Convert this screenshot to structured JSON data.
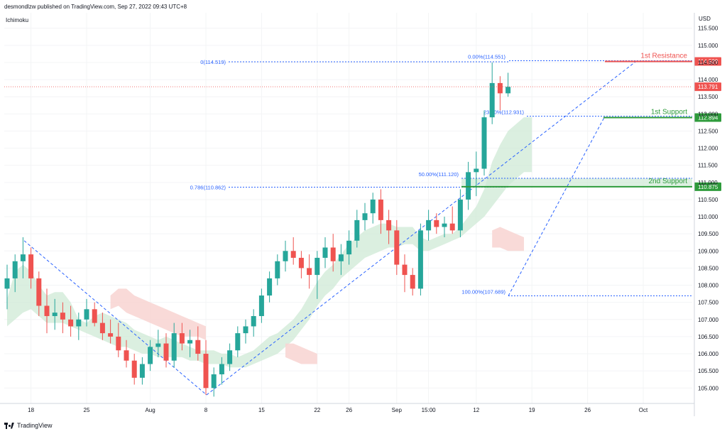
{
  "header": {
    "text": "desmondlzw published on TradingView.com, Sep 27, 2022 09:43 UTC+8"
  },
  "indicator": {
    "name": "Ichimoku"
  },
  "footer": {
    "brand": "TradingView"
  },
  "colors": {
    "bull": "#26a69a",
    "bear": "#ef5350",
    "resistance": "#ef5350",
    "support": "#2e9b3b",
    "fib": "#2962ff",
    "cloud_bull": "#cfe9d5",
    "cloud_bear": "#f8d3d1",
    "last_price": "#ef5350"
  },
  "chart_data": {
    "type": "candlestick",
    "currency_label": "USD",
    "ylim": [
      104.55,
      115.95
    ],
    "y_ticks": [
      "105.000",
      "105.500",
      "106.000",
      "106.500",
      "107.000",
      "107.500",
      "108.000",
      "108.500",
      "109.000",
      "109.500",
      "110.000",
      "110.500",
      "111.000",
      "111.500",
      "112.000",
      "112.500",
      "113.000",
      "113.500",
      "114.000",
      "114.500",
      "115.000",
      "115.500"
    ],
    "x_ticks": [
      {
        "label": "18",
        "i": 3
      },
      {
        "label": "25",
        "i": 10
      },
      {
        "label": "Aug",
        "i": 18
      },
      {
        "label": "8",
        "i": 25
      },
      {
        "label": "15",
        "i": 32
      },
      {
        "label": "22",
        "i": 39
      },
      {
        "label": "26",
        "i": 43
      },
      {
        "label": "Sep",
        "i": 49
      },
      {
        "label": "15:00",
        "i": 53
      },
      {
        "label": "12",
        "i": 59
      },
      {
        "label": "19",
        "i": 66
      },
      {
        "label": "26",
        "i": 73
      },
      {
        "label": "Oct",
        "i": 80
      }
    ],
    "candles": [
      [
        107.9,
        108.6,
        107.3,
        108.2
      ],
      [
        108.2,
        108.9,
        107.8,
        108.7
      ],
      [
        108.7,
        109.4,
        108.2,
        108.9
      ],
      [
        108.9,
        109.1,
        107.9,
        108.2
      ],
      [
        108.2,
        108.4,
        107.1,
        107.4
      ],
      [
        107.4,
        107.9,
        106.6,
        107.1
      ],
      [
        107.1,
        107.6,
        106.7,
        107.2
      ],
      [
        107.2,
        107.5,
        106.6,
        107.0
      ],
      [
        107.0,
        107.4,
        106.5,
        106.8
      ],
      [
        106.8,
        107.2,
        106.4,
        107.0
      ],
      [
        107.0,
        107.6,
        106.8,
        107.3
      ],
      [
        107.3,
        107.5,
        106.8,
        106.9
      ],
      [
        106.9,
        107.2,
        106.4,
        106.6
      ],
      [
        106.6,
        107.0,
        106.3,
        106.5
      ],
      [
        106.5,
        106.9,
        105.9,
        106.1
      ],
      [
        106.1,
        106.4,
        105.6,
        105.8
      ],
      [
        105.8,
        106.0,
        105.1,
        105.3
      ],
      [
        105.3,
        105.9,
        105.1,
        105.7
      ],
      [
        105.7,
        106.4,
        105.5,
        106.2
      ],
      [
        106.2,
        106.7,
        105.9,
        106.3
      ],
      [
        106.3,
        106.6,
        105.6,
        105.8
      ],
      [
        105.8,
        106.9,
        105.6,
        106.6
      ],
      [
        106.6,
        106.9,
        106.1,
        106.3
      ],
      [
        106.3,
        106.7,
        105.9,
        106.4
      ],
      [
        106.4,
        106.8,
        105.8,
        106.0
      ],
      [
        106.0,
        106.4,
        104.8,
        105.0
      ],
      [
        105.0,
        105.6,
        104.75,
        105.4
      ],
      [
        105.4,
        105.9,
        105.1,
        105.7
      ],
      [
        105.7,
        106.3,
        105.5,
        106.1
      ],
      [
        106.1,
        106.8,
        105.9,
        106.6
      ],
      [
        106.6,
        107.0,
        106.3,
        106.8
      ],
      [
        106.8,
        107.3,
        106.5,
        107.1
      ],
      [
        107.1,
        107.9,
        106.9,
        107.7
      ],
      [
        107.7,
        108.4,
        107.5,
        108.2
      ],
      [
        108.2,
        108.9,
        108.0,
        108.7
      ],
      [
        108.7,
        109.3,
        108.4,
        109.0
      ],
      [
        109.0,
        109.4,
        108.6,
        108.8
      ],
      [
        108.8,
        109.0,
        108.2,
        108.5
      ],
      [
        108.5,
        108.9,
        107.9,
        108.3
      ],
      [
        108.3,
        109.0,
        107.6,
        108.8
      ],
      [
        108.8,
        109.4,
        108.5,
        109.1
      ],
      [
        109.1,
        109.5,
        108.4,
        108.7
      ],
      [
        108.7,
        109.2,
        108.3,
        108.9
      ],
      [
        108.9,
        109.6,
        108.6,
        109.3
      ],
      [
        109.3,
        110.2,
        109.1,
        109.9
      ],
      [
        109.9,
        110.4,
        109.6,
        110.1
      ],
      [
        110.1,
        110.7,
        109.8,
        110.5
      ],
      [
        110.5,
        110.8,
        109.5,
        109.9
      ],
      [
        109.9,
        110.2,
        109.2,
        109.6
      ],
      [
        109.6,
        109.9,
        108.3,
        108.6
      ],
      [
        108.6,
        108.9,
        107.8,
        108.3
      ],
      [
        108.3,
        108.5,
        107.7,
        107.9
      ],
      [
        107.9,
        109.8,
        107.7,
        109.6
      ],
      [
        109.6,
        110.2,
        109.3,
        109.9
      ],
      [
        109.9,
        110.1,
        109.5,
        109.7
      ],
      [
        109.7,
        110.0,
        109.4,
        109.8
      ],
      [
        109.8,
        110.3,
        109.5,
        109.6
      ],
      [
        109.6,
        110.8,
        109.4,
        110.5
      ],
      [
        110.5,
        111.6,
        110.2,
        111.3
      ],
      [
        111.3,
        111.9,
        110.6,
        111.4
      ],
      [
        111.4,
        113.1,
        111.2,
        112.9
      ],
      [
        112.9,
        114.5,
        112.7,
        113.9
      ],
      [
        113.9,
        114.1,
        113.1,
        113.6
      ],
      [
        113.6,
        114.2,
        113.5,
        113.79
      ]
    ],
    "cloud_green_upper": [
      107.6,
      108.4,
      108.6,
      108.4,
      108.0,
      107.7,
      107.8,
      107.8,
      107.5,
      107.0,
      106.9,
      107.1,
      107.2,
      107.1,
      107.0,
      106.9,
      106.7,
      106.6,
      106.5,
      106.4,
      106.5,
      106.4,
      106.3,
      106.2,
      106.1,
      106.1,
      106.1,
      106.0,
      106.0,
      105.9,
      106.0,
      106.1,
      106.3,
      106.5,
      106.6,
      106.8,
      107.0,
      107.3,
      107.7,
      108.1,
      108.4,
      108.6,
      108.9,
      109.2,
      109.4,
      109.6,
      109.7,
      109.8,
      109.8,
      109.7,
      109.7,
      109.7,
      109.4,
      109.3,
      109.4,
      109.5,
      109.5,
      109.7,
      110.0,
      110.3,
      110.8,
      111.6,
      112.1,
      112.5,
      112.7,
      112.9,
      112.9
    ],
    "cloud_green_lower": [
      106.8,
      107.0,
      107.2,
      107.3,
      107.1,
      106.9,
      106.9,
      106.9,
      106.8,
      106.7,
      106.6,
      106.5,
      106.4,
      106.3,
      106.2,
      106.2,
      106.1,
      106.0,
      106.0,
      105.9,
      105.9,
      105.9,
      105.9,
      105.8,
      105.8,
      105.7,
      105.7,
      105.7,
      105.6,
      105.6,
      105.6,
      105.7,
      105.8,
      105.9,
      106.0,
      106.2,
      106.4,
      106.7,
      107.0,
      107.4,
      107.7,
      107.9,
      108.2,
      108.4,
      108.6,
      108.8,
      108.9,
      109.0,
      109.1,
      109.1,
      109.2,
      109.2,
      109.0,
      109.0,
      109.1,
      109.2,
      109.3,
      109.4,
      109.6,
      109.8,
      110.0,
      110.3,
      110.6,
      110.9,
      111.1,
      111.3,
      111.3
    ],
    "cloud_red": [
      {
        "from": 13,
        "to": 25,
        "upper": [
          107.7,
          107.9,
          107.9,
          107.7,
          107.6,
          107.5,
          107.4,
          107.3,
          107.2,
          107.1,
          107.0,
          106.9,
          106.8
        ],
        "lower": [
          107.3,
          107.4,
          107.2,
          107.1,
          107.0,
          106.9,
          106.8,
          106.7,
          106.6,
          106.5,
          106.5,
          106.5,
          106.4
        ]
      },
      {
        "from": 35,
        "to": 39,
        "upper": [
          106.3,
          106.3,
          106.2,
          106.1,
          106.0
        ],
        "lower": [
          105.9,
          105.8,
          105.7,
          105.7,
          105.7
        ]
      },
      {
        "from": 61,
        "to": 65,
        "upper": [
          109.6,
          109.7,
          109.6,
          109.5,
          109.4
        ],
        "lower": [
          109.1,
          109.1,
          109.0,
          109.0,
          109.0
        ]
      }
    ],
    "fib": {
      "high": 114.551,
      "low": 107.689,
      "levels": [
        {
          "label": "0.00%(114.551)",
          "value": 114.551
        },
        {
          "label": "23.60%(112.931)",
          "value": 112.931
        },
        {
          "label": "50.00%(111.120)",
          "value": 111.12
        },
        {
          "label": "100.00%(107.689)",
          "value": 107.689
        }
      ]
    },
    "fib_ext_labels": [
      {
        "label": "0(114.519)",
        "value": 114.519
      },
      {
        "label": "0.786(110.862)",
        "value": 110.862
      }
    ],
    "levels": [
      {
        "name": "1st Resistance",
        "value": 114.529,
        "label": "114.529",
        "kind": "resistance"
      },
      {
        "name": "1st Support",
        "value": 112.894,
        "label": "112.894",
        "kind": "support"
      },
      {
        "name": "2nd Support",
        "value": 110.875,
        "label": "110.875",
        "kind": "support"
      }
    ],
    "last_price": {
      "value": 113.791,
      "label": "113.791"
    }
  }
}
